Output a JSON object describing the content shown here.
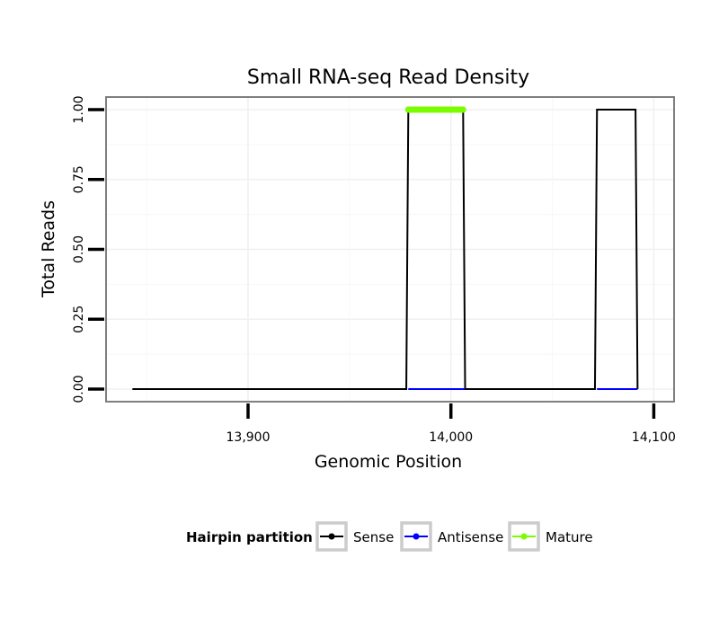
{
  "chart_data": {
    "type": "line",
    "title": "Small RNA-seq Read Density",
    "xlabel": "Genomic Position",
    "ylabel": "Total Reads",
    "xlim": [
      13830,
      14110
    ],
    "ylim": [
      -0.045,
      1.045
    ],
    "x_ticks": [
      13900,
      14000,
      14100
    ],
    "x_tick_labels": [
      "13,900",
      "14,000",
      "14,100"
    ],
    "y_ticks": [
      0,
      0.25,
      0.5,
      0.75,
      1
    ],
    "y_tick_labels": [
      "0.00",
      "0.25",
      "0.50",
      "0.75",
      "1.00"
    ],
    "grid": true,
    "legend": {
      "title": "Hairpin partition",
      "position": "bottom"
    },
    "series": [
      {
        "name": "Sense",
        "color": "#000000",
        "x": [
          13843,
          13978,
          13979,
          14006,
          14007,
          14071,
          14072,
          14091,
          14092
        ],
        "y": [
          0,
          0,
          1,
          1,
          0,
          0,
          1,
          1,
          0
        ]
      },
      {
        "name": "Antisense",
        "color": "#0000ff",
        "segments": [
          {
            "x": [
              13979,
              14007
            ],
            "y": [
              0,
              0
            ]
          },
          {
            "x": [
              14072,
              14092
            ],
            "y": [
              0,
              0
            ]
          }
        ]
      },
      {
        "name": "Mature",
        "color": "#7cfc00",
        "segments": [
          {
            "x": [
              13979,
              14006
            ],
            "y": [
              1,
              1
            ]
          }
        ]
      }
    ]
  }
}
